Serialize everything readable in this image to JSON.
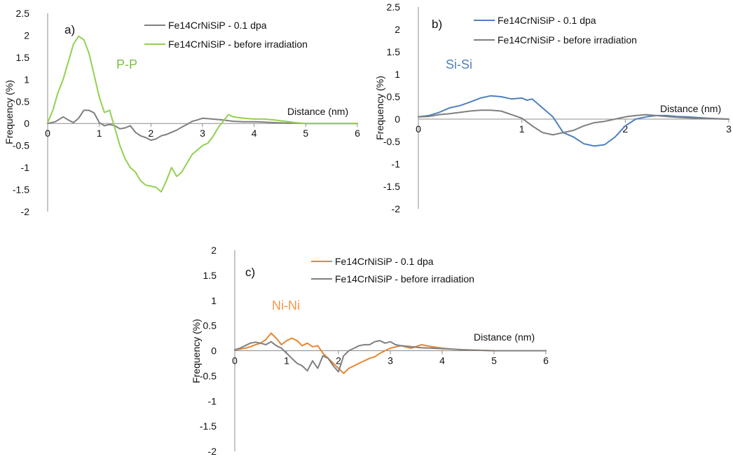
{
  "chart_data": [
    {
      "type": "line",
      "panel_label": "a)",
      "pair_label": "P-P",
      "pair_color": "#7dc142",
      "xlabel": "Distance (nm)",
      "ylabel": "Frequency (%)",
      "xlim": [
        0,
        6
      ],
      "ylim": [
        -2,
        2.5
      ],
      "xticks": [
        0,
        1,
        2,
        3,
        4,
        5,
        6
      ],
      "yticks": [
        -2,
        -1.5,
        -1,
        -0.5,
        0,
        0.5,
        1,
        1.5,
        2,
        2.5
      ],
      "grid": false,
      "legend_position": "top-right",
      "series": [
        {
          "name": "Fe14CrNiSiP - 0.1 dpa",
          "color": "#7f7f7f",
          "x": [
            0,
            0.15,
            0.3,
            0.4,
            0.5,
            0.6,
            0.7,
            0.8,
            0.9,
            1.0,
            1.1,
            1.2,
            1.3,
            1.4,
            1.5,
            1.6,
            1.7,
            1.8,
            1.9,
            2.0,
            2.1,
            2.2,
            2.3,
            2.4,
            2.5,
            2.6,
            2.7,
            2.8,
            2.9,
            3.0,
            3.2,
            3.4,
            3.6,
            3.8,
            4.0,
            4.2,
            4.4,
            4.6,
            4.8,
            5.0,
            6.0
          ],
          "y": [
            0,
            0.04,
            0.15,
            0.08,
            0.02,
            0.12,
            0.3,
            0.3,
            0.24,
            0.02,
            -0.05,
            -0.02,
            -0.05,
            -0.12,
            -0.1,
            -0.05,
            -0.2,
            -0.28,
            -0.32,
            -0.38,
            -0.35,
            -0.28,
            -0.25,
            -0.2,
            -0.15,
            -0.08,
            -0.02,
            0.05,
            0.08,
            0.12,
            0.1,
            0.08,
            0.05,
            0.04,
            0.04,
            0.03,
            0.02,
            0.01,
            0.01,
            0,
            0
          ]
        },
        {
          "name": "Fe14CrNiSiP - before irradiation",
          "color": "#92d050",
          "x": [
            0,
            0.1,
            0.2,
            0.3,
            0.4,
            0.5,
            0.6,
            0.7,
            0.8,
            0.9,
            1.0,
            1.1,
            1.2,
            1.3,
            1.4,
            1.5,
            1.6,
            1.7,
            1.8,
            1.9,
            2.0,
            2.1,
            2.2,
            2.3,
            2.4,
            2.5,
            2.6,
            2.7,
            2.8,
            2.9,
            3.0,
            3.1,
            3.2,
            3.3,
            3.4,
            3.5,
            3.6,
            3.8,
            4.0,
            4.2,
            4.4,
            4.6,
            4.8,
            5.0,
            6.0
          ],
          "y": [
            0.02,
            0.3,
            0.7,
            1.0,
            1.4,
            1.8,
            1.98,
            1.9,
            1.6,
            1.1,
            0.6,
            0.25,
            0.3,
            -0.1,
            -0.5,
            -0.8,
            -1.0,
            -1.1,
            -1.3,
            -1.4,
            -1.42,
            -1.45,
            -1.55,
            -1.3,
            -1.0,
            -1.2,
            -1.1,
            -0.9,
            -0.7,
            -0.6,
            -0.5,
            -0.45,
            -0.3,
            -0.1,
            0.05,
            0.2,
            0.15,
            0.12,
            0.1,
            0.1,
            0.08,
            0.05,
            0.02,
            0,
            0
          ]
        }
      ]
    },
    {
      "type": "line",
      "panel_label": "b)",
      "pair_label": "Si-Si",
      "pair_color": "#4f81bd",
      "xlabel": "Distance (nm)",
      "ylabel": "Frequency (%)",
      "xlim": [
        0,
        3
      ],
      "ylim": [
        -2,
        2.5
      ],
      "xticks": [
        0,
        1,
        2,
        3
      ],
      "yticks": [
        -2,
        -1.5,
        -1,
        -0.5,
        0,
        0.5,
        1,
        1.5,
        2,
        2.5
      ],
      "grid": false,
      "legend_position": "top-right",
      "series": [
        {
          "name": "Fe14CrNiSiP - 0.1 dpa",
          "color": "#4f81bd",
          "x": [
            0,
            0.1,
            0.2,
            0.3,
            0.4,
            0.5,
            0.6,
            0.7,
            0.8,
            0.9,
            1.0,
            1.05,
            1.1,
            1.2,
            1.3,
            1.4,
            1.5,
            1.6,
            1.7,
            1.8,
            1.9,
            2.0,
            2.1,
            2.2,
            2.3,
            2.4,
            2.5,
            2.6,
            2.8,
            3.0
          ],
          "y": [
            0.05,
            0.08,
            0.15,
            0.25,
            0.3,
            0.38,
            0.47,
            0.52,
            0.5,
            0.45,
            0.47,
            0.42,
            0.45,
            0.25,
            0.05,
            -0.3,
            -0.4,
            -0.55,
            -0.6,
            -0.57,
            -0.4,
            -0.15,
            0.0,
            0.05,
            0.08,
            0.08,
            0.06,
            0.05,
            0.02,
            0
          ]
        },
        {
          "name": "Fe14CrNiSiP - before irradiation",
          "color": "#7f7f7f",
          "x": [
            0,
            0.1,
            0.2,
            0.3,
            0.4,
            0.5,
            0.6,
            0.7,
            0.8,
            0.9,
            1.0,
            1.1,
            1.2,
            1.3,
            1.4,
            1.5,
            1.6,
            1.7,
            1.8,
            1.9,
            2.0,
            2.1,
            2.2,
            2.3,
            2.4,
            2.5,
            2.6,
            2.8,
            3.0
          ],
          "y": [
            0.05,
            0.06,
            0.1,
            0.12,
            0.15,
            0.18,
            0.2,
            0.2,
            0.18,
            0.1,
            0.02,
            -0.15,
            -0.3,
            -0.35,
            -0.3,
            -0.25,
            -0.15,
            -0.08,
            -0.05,
            0.0,
            0.05,
            0.08,
            0.1,
            0.08,
            0.06,
            0.04,
            0.03,
            0.01,
            0
          ]
        }
      ]
    },
    {
      "type": "line",
      "panel_label": "c)",
      "pair_label": "Ni-Ni",
      "pair_color": "#f79646",
      "xlabel": "Distance (nm)",
      "ylabel": "Frequency (%)",
      "xlim": [
        0,
        6
      ],
      "ylim": [
        -2,
        2
      ],
      "xticks": [
        0,
        1,
        2,
        3,
        4,
        5,
        6
      ],
      "yticks": [
        -2,
        -1.5,
        -1,
        -0.5,
        0,
        0.5,
        1,
        1.5,
        2
      ],
      "grid": false,
      "legend_position": "top-right",
      "series": [
        {
          "name": "Fe14CrNiSiP - 0.1 dpa",
          "color": "#e8852e",
          "x": [
            0,
            0.1,
            0.2,
            0.3,
            0.4,
            0.5,
            0.6,
            0.7,
            0.8,
            0.9,
            1.0,
            1.1,
            1.2,
            1.3,
            1.4,
            1.5,
            1.6,
            1.7,
            1.8,
            1.9,
            2.0,
            2.1,
            2.2,
            2.3,
            2.4,
            2.5,
            2.6,
            2.7,
            2.8,
            2.9,
            3.0,
            3.2,
            3.4,
            3.6,
            3.8,
            4.0,
            4.2,
            4.4,
            4.6,
            5.0,
            6.0
          ],
          "y": [
            0.02,
            0.03,
            0.05,
            0.08,
            0.12,
            0.15,
            0.22,
            0.35,
            0.25,
            0.12,
            0.2,
            0.25,
            0.2,
            0.1,
            0.15,
            0.08,
            0.1,
            -0.05,
            -0.15,
            -0.25,
            -0.35,
            -0.45,
            -0.35,
            -0.3,
            -0.25,
            -0.2,
            -0.15,
            -0.12,
            -0.05,
            0.0,
            0.05,
            0.1,
            0.05,
            0.12,
            0.08,
            0.05,
            0.03,
            0.02,
            0.01,
            0,
            0
          ]
        },
        {
          "name": "Fe14CrNiSiP - before irradiation",
          "color": "#7f7f7f",
          "x": [
            0,
            0.1,
            0.2,
            0.3,
            0.4,
            0.5,
            0.6,
            0.7,
            0.8,
            0.9,
            1.0,
            1.1,
            1.2,
            1.3,
            1.4,
            1.5,
            1.6,
            1.7,
            1.8,
            1.9,
            2.0,
            2.1,
            2.2,
            2.3,
            2.4,
            2.5,
            2.6,
            2.7,
            2.8,
            2.9,
            3.0,
            3.1,
            3.2,
            3.4,
            3.6,
            3.8,
            4.0,
            4.2,
            4.4,
            5.0,
            6.0
          ],
          "y": [
            0.02,
            0.05,
            0.1,
            0.15,
            0.17,
            0.15,
            0.12,
            0.18,
            0.1,
            0.05,
            -0.05,
            -0.15,
            -0.25,
            -0.3,
            -0.4,
            -0.2,
            -0.35,
            -0.1,
            -0.15,
            -0.3,
            -0.42,
            -0.1,
            0.0,
            0.05,
            0.1,
            0.12,
            0.12,
            0.18,
            0.2,
            0.15,
            0.18,
            0.12,
            0.1,
            0.08,
            0.06,
            0.05,
            0.04,
            0.03,
            0.02,
            0,
            0
          ]
        }
      ]
    }
  ]
}
